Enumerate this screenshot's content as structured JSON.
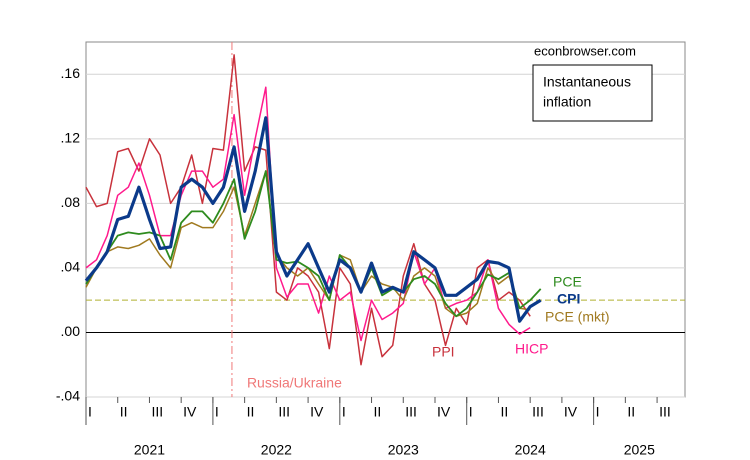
{
  "chart_data": {
    "type": "line",
    "source": "econbrowser.com",
    "note": [
      "Instantaneous",
      "inflation"
    ],
    "x": [
      2021,
      2021.083,
      2021.167,
      2021.25,
      2021.333,
      2021.417,
      2021.5,
      2021.583,
      2021.667,
      2021.75,
      2021.833,
      2021.917,
      2022,
      2022.083,
      2022.167,
      2022.25,
      2022.333,
      2022.417,
      2022.5,
      2022.583,
      2022.667,
      2022.75,
      2022.833,
      2022.917,
      2023,
      2023.083,
      2023.167,
      2023.25,
      2023.333,
      2023.417,
      2023.5,
      2023.583,
      2023.667,
      2023.75,
      2023.833,
      2023.917,
      2024,
      2024.083,
      2024.167,
      2024.25,
      2024.333,
      2024.417,
      2024.5,
      2024.583
    ],
    "series": [
      {
        "name": "PPI",
        "color": "#c8323c",
        "width": 1.5,
        "values": [
          0.09,
          0.078,
          0.08,
          0.112,
          0.114,
          0.1,
          0.12,
          0.11,
          0.08,
          0.09,
          0.11,
          0.08,
          0.114,
          0.113,
          0.172,
          0.1,
          0.115,
          0.113,
          0.025,
          0.02,
          0.04,
          0.035,
          0.025,
          -0.01,
          0.04,
          0.03,
          -0.02,
          0.015,
          -0.015,
          -0.008,
          0.035,
          0.055,
          0.03,
          0.02,
          -0.008,
          0.015,
          0.005,
          0.04,
          0.045,
          0.02,
          0.025,
          0.02,
          0.01,
          null
        ]
      },
      {
        "name": "HICP",
        "color": "#ff1a8c",
        "width": 1.5,
        "values": [
          0.04,
          0.045,
          0.06,
          0.085,
          0.09,
          0.105,
          0.085,
          0.06,
          0.06,
          0.085,
          0.1,
          0.1,
          0.09,
          0.095,
          0.135,
          0.085,
          0.12,
          0.152,
          0.04,
          0.022,
          0.03,
          0.03,
          0.012,
          0.035,
          0.02,
          0.025,
          -0.005,
          0.02,
          0.008,
          0.012,
          0.018,
          0.05,
          0.03,
          0.04,
          0.015,
          0.018,
          0.02,
          0.025,
          0.045,
          0.015,
          0.005,
          -0.001,
          0.003,
          null
        ]
      },
      {
        "name": "PCE (mkt)",
        "color": "#a07a20",
        "width": 1.5,
        "values": [
          0.028,
          0.04,
          0.05,
          0.053,
          0.052,
          0.054,
          0.058,
          0.048,
          0.04,
          0.065,
          0.068,
          0.065,
          0.065,
          0.075,
          0.09,
          0.06,
          0.08,
          0.1,
          0.048,
          0.04,
          0.035,
          0.04,
          0.03,
          0.02,
          0.048,
          0.045,
          0.025,
          0.035,
          0.03,
          0.028,
          0.02,
          0.035,
          0.04,
          0.035,
          0.015,
          0.01,
          0.012,
          0.018,
          0.04,
          0.03,
          0.035,
          0.015,
          0.014,
          null
        ]
      },
      {
        "name": "PCE",
        "color": "#2e8b1e",
        "width": 1.8,
        "values": [
          0.03,
          0.04,
          0.05,
          0.06,
          0.062,
          0.061,
          0.062,
          0.06,
          0.045,
          0.068,
          0.075,
          0.075,
          0.068,
          0.08,
          0.095,
          0.058,
          0.075,
          0.1,
          0.045,
          0.043,
          0.044,
          0.04,
          0.035,
          0.02,
          0.048,
          0.04,
          0.025,
          0.04,
          0.023,
          0.027,
          0.025,
          0.033,
          0.035,
          0.03,
          0.018,
          0.01,
          0.015,
          0.025,
          0.036,
          0.033,
          0.037,
          0.015,
          0.02,
          0.027
        ]
      },
      {
        "name": "CPI",
        "color": "#0b3a8a",
        "width": 3.2,
        "values": [
          0.032,
          0.04,
          0.05,
          0.07,
          0.072,
          0.09,
          0.07,
          0.052,
          0.053,
          0.09,
          0.095,
          0.09,
          0.08,
          0.09,
          0.115,
          0.075,
          0.1,
          0.133,
          0.05,
          0.035,
          0.045,
          0.055,
          0.04,
          0.025,
          0.045,
          0.04,
          0.025,
          0.043,
          0.025,
          0.028,
          0.025,
          0.05,
          0.045,
          0.04,
          0.023,
          0.023,
          0.028,
          0.033,
          0.044,
          0.043,
          0.04,
          0.007,
          0.016,
          0.02
        ]
      }
    ],
    "xlim": [
      2021,
      2025.72
    ],
    "ylim": [
      -0.04,
      0.18
    ],
    "yticks": [
      {
        "value": -0.04,
        "label": "-.04"
      },
      {
        "value": 0,
        "label": ".00"
      },
      {
        "value": 0.04,
        "label": ".04"
      },
      {
        "value": 0.08,
        "label": ".08"
      },
      {
        "value": 0.12,
        "label": ".12"
      },
      {
        "value": 0.16,
        "label": ".16"
      }
    ],
    "xticks": [
      {
        "value": 2021,
        "label": "I"
      },
      {
        "value": 2021.25,
        "label": "II"
      },
      {
        "value": 2021.5,
        "label": "III"
      },
      {
        "value": 2021.75,
        "label": "IV"
      },
      {
        "value": 2022,
        "label": "I"
      },
      {
        "value": 2022.25,
        "label": "II"
      },
      {
        "value": 2022.5,
        "label": "III"
      },
      {
        "value": 2022.75,
        "label": "IV"
      },
      {
        "value": 2023,
        "label": "I"
      },
      {
        "value": 2023.25,
        "label": "II"
      },
      {
        "value": 2023.5,
        "label": "III"
      },
      {
        "value": 2023.75,
        "label": "IV"
      },
      {
        "value": 2024,
        "label": "I"
      },
      {
        "value": 2024.25,
        "label": "II"
      },
      {
        "value": 2024.5,
        "label": "III"
      },
      {
        "value": 2024.75,
        "label": "IV"
      },
      {
        "value": 2025,
        "label": "I"
      },
      {
        "value": 2025.25,
        "label": "II"
      },
      {
        "value": 2025.5,
        "label": "III"
      }
    ],
    "year_ticks": [
      {
        "value": 2021,
        "label": "2021"
      },
      {
        "value": 2022,
        "label": "2022"
      },
      {
        "value": 2023,
        "label": "2023"
      },
      {
        "value": 2024,
        "label": "2024"
      },
      {
        "value": 2025,
        "label": "2025"
      }
    ],
    "grid": true,
    "hlines": [
      {
        "value": 0,
        "color": "#000000",
        "dashed": false
      },
      {
        "value": 0.02,
        "color": "#b0b030",
        "dashed": true
      }
    ],
    "vlines": [
      {
        "value": 2022.15,
        "label": "Russia/Ukraine",
        "color": "#f07878"
      }
    ]
  }
}
